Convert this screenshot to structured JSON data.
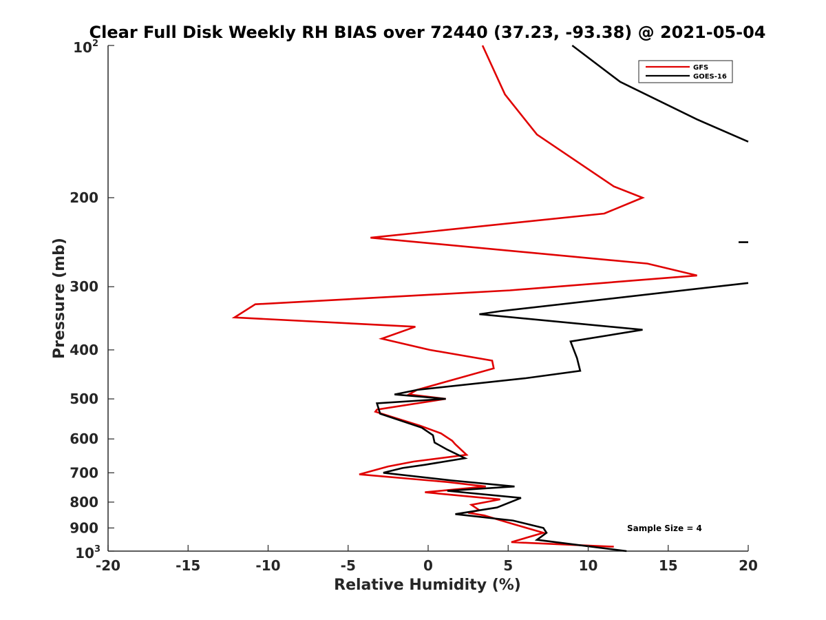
{
  "chart_data": {
    "type": "line",
    "title": "Clear Full Disk Weekly RH BIAS over 72440 (37.23, -93.38) @ 2021-05-04",
    "xlabel": "Relative Humidity (%)",
    "ylabel": "Pressure (mb)",
    "xlim": [
      -20,
      20
    ],
    "ylim": [
      100,
      1000
    ],
    "y_scale": "log",
    "y_reversed": true,
    "grid": false,
    "legend_position": "top-right",
    "x_ticks": [
      -20,
      -15,
      -10,
      -5,
      0,
      5,
      10,
      15,
      20
    ],
    "x_tick_labels": [
      "-20",
      "-15",
      "-10",
      "-5",
      "0",
      "5",
      "10",
      "15",
      "20"
    ],
    "y_ticks": [
      200,
      300,
      400,
      500,
      600,
      700,
      800,
      900
    ],
    "y_tick_labels": [
      "200",
      "300",
      "400",
      "500",
      "600",
      "700",
      "800",
      "900"
    ],
    "y_top_label": {
      "base": "10",
      "exp": "2"
    },
    "y_bottom_label": {
      "base": "10",
      "exp": "3"
    },
    "annotation": "Sample Size = 4",
    "series": [
      {
        "name": "GFS",
        "color": "#e00000",
        "points": [
          [
            3.4,
            100
          ],
          [
            4.8,
            125
          ],
          [
            6.8,
            150
          ],
          [
            11.6,
            190
          ],
          [
            13.4,
            200
          ],
          [
            11.0,
            215
          ],
          [
            -3.6,
            240
          ],
          [
            13.7,
            270
          ],
          [
            16.8,
            285
          ],
          [
            5.1,
            305
          ],
          [
            -10.8,
            325
          ],
          [
            -12.1,
            345
          ],
          [
            -0.8,
            360
          ],
          [
            -2.9,
            380
          ],
          [
            0.1,
            400
          ],
          [
            4.0,
            420
          ],
          [
            4.1,
            435
          ],
          [
            -0.7,
            480
          ],
          [
            -1.2,
            490
          ],
          [
            1.1,
            500
          ],
          [
            -3.2,
            525
          ],
          [
            -3.3,
            530
          ],
          [
            -0.5,
            565
          ],
          [
            0.8,
            585
          ],
          [
            1.5,
            605
          ],
          [
            1.7,
            615
          ],
          [
            2.4,
            645
          ],
          [
            -0.9,
            665
          ],
          [
            -2.5,
            680
          ],
          [
            -4.3,
            705
          ],
          [
            1.2,
            730
          ],
          [
            3.6,
            745
          ],
          [
            -0.2,
            765
          ],
          [
            4.5,
            790
          ],
          [
            2.7,
            810
          ],
          [
            3.2,
            830
          ],
          [
            2.5,
            840
          ],
          [
            3.5,
            850
          ],
          [
            5.1,
            880
          ],
          [
            7.2,
            920
          ],
          [
            5.2,
            960
          ],
          [
            11.6,
            980
          ]
        ]
      },
      {
        "name": "GOES-16",
        "color": "#000000",
        "points": [
          [
            9.0,
            100
          ],
          [
            12.0,
            118
          ],
          [
            16.8,
            140
          ],
          [
            20.0,
            155
          ],
          [
            null,
            null
          ],
          [
            19.4,
            245
          ],
          [
            20.0,
            245
          ],
          [
            null,
            null
          ],
          [
            20.0,
            295
          ],
          [
            4.6,
            335
          ],
          [
            3.2,
            340
          ],
          [
            13.4,
            365
          ],
          [
            8.9,
            385
          ],
          [
            9.3,
            415
          ],
          [
            9.5,
            440
          ],
          [
            6.1,
            455
          ],
          [
            -0.7,
            480
          ],
          [
            -2.1,
            490
          ],
          [
            1.1,
            500
          ],
          [
            -3.2,
            510
          ],
          [
            -3.0,
            535
          ],
          [
            -0.4,
            570
          ],
          [
            0.3,
            590
          ],
          [
            0.4,
            610
          ],
          [
            1.2,
            630
          ],
          [
            2.3,
            655
          ],
          [
            -0.2,
            675
          ],
          [
            -1.6,
            685
          ],
          [
            -2.8,
            700
          ],
          [
            1.5,
            725
          ],
          [
            5.4,
            745
          ],
          [
            1.2,
            760
          ],
          [
            5.8,
            785
          ],
          [
            4.3,
            820
          ],
          [
            1.7,
            845
          ],
          [
            5.3,
            870
          ],
          [
            7.2,
            900
          ],
          [
            7.4,
            920
          ],
          [
            6.8,
            950
          ],
          [
            12.4,
            1000
          ]
        ]
      }
    ]
  }
}
